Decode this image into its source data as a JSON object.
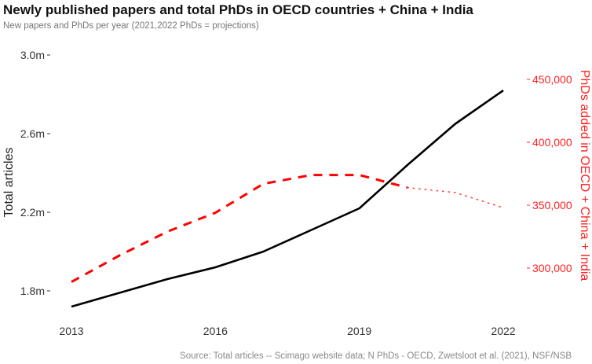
{
  "title": "Newly published papers and total PhDs in OECD countries + China + India",
  "subtitle": "New papers and PhDs per year (2021,2022 PhDs = projections)",
  "source": "Source: Total articles -- Scimago website data; N PhDs - OECD, Zwetsloot et al. (2021), NSF/NSB",
  "colors": {
    "articles": "#000000",
    "phds": "#ff0000"
  },
  "chart_data": {
    "type": "line",
    "x": [
      2013,
      2014,
      2015,
      2016,
      2017,
      2018,
      2019,
      2020,
      2021,
      2022
    ],
    "x_ticks": [
      "2013",
      "2016",
      "2019",
      "2022"
    ],
    "xlim": [
      2013,
      2022
    ],
    "ylabel": "Total articles",
    "ylim": [
      1.68,
      3.0
    ],
    "y_ticks": [
      "1.8m",
      "2.2m",
      "2.6m",
      "3.0m"
    ],
    "y_tick_values": [
      1.8,
      2.2,
      2.6,
      3.0
    ],
    "y2label": "PhDs added in OECD + China + India",
    "y2lim": [
      275000,
      475000
    ],
    "y2_ticks": [
      "300,000",
      "350,000",
      "400,000",
      "450,000"
    ],
    "y2_tick_values": [
      300000,
      350000,
      400000,
      450000
    ],
    "grid": false,
    "series": [
      {
        "axis": "left",
        "style": "solid",
        "color": "#000000",
        "values": [
          1.72,
          1.79,
          1.86,
          1.92,
          2.0,
          2.11,
          2.22,
          2.44,
          2.65,
          2.82
        ]
      },
      {
        "axis": "right",
        "style": "dashed",
        "color": "#ff0000",
        "values": [
          289000,
          310000,
          329000,
          344000,
          367000,
          374000,
          374000,
          364000,
          null,
          null
        ]
      },
      {
        "axis": "right",
        "style": "dotted",
        "color": "#ff0000",
        "note": "projection",
        "values": [
          null,
          null,
          null,
          null,
          null,
          null,
          null,
          364000,
          360000,
          348000
        ]
      }
    ]
  }
}
